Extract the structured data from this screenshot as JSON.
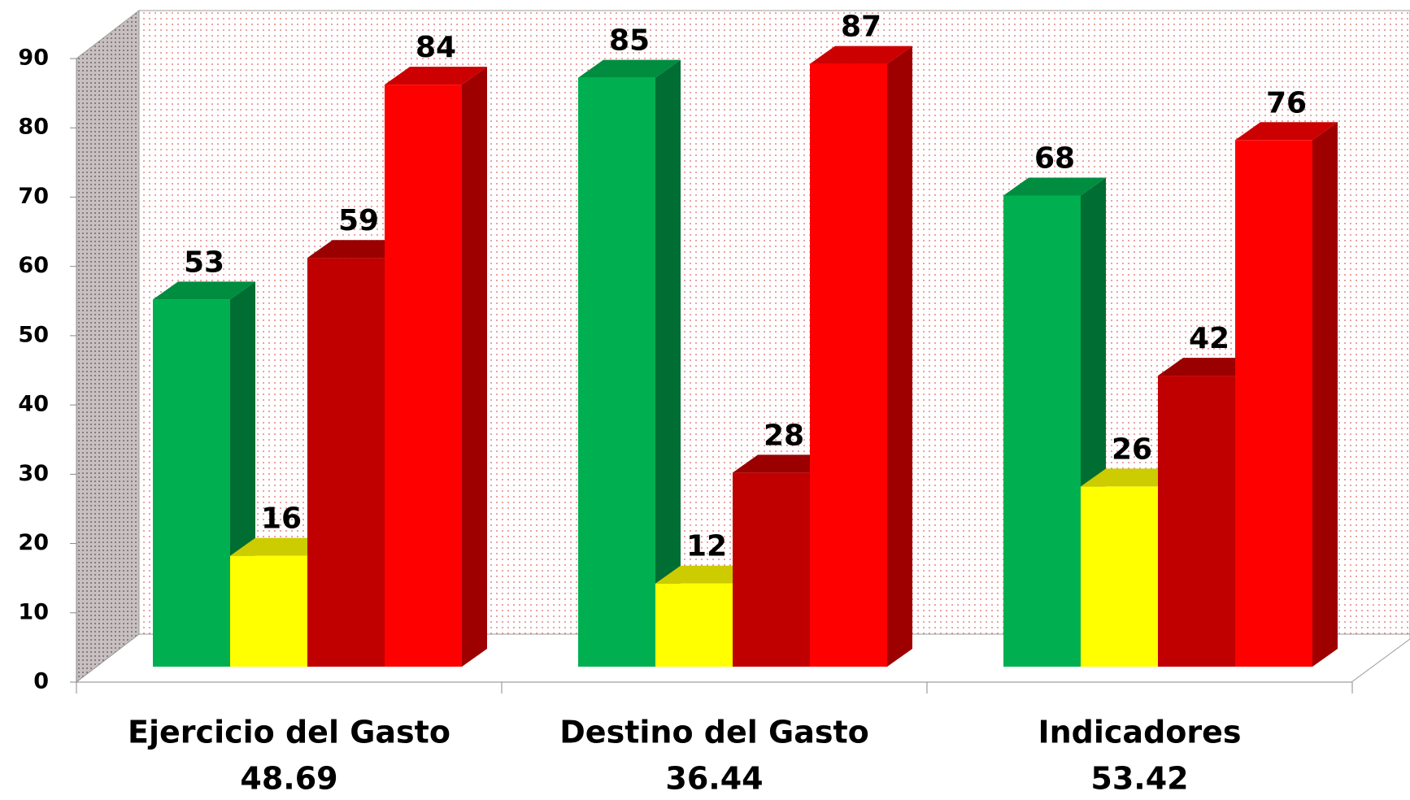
{
  "chart_data": {
    "type": "bar3d",
    "categories": [
      {
        "name": "Ejercicio del Gasto",
        "score": "48.69"
      },
      {
        "name": "Destino del Gasto",
        "score": "36.44"
      },
      {
        "name": "Indicadores",
        "score": "53.42"
      }
    ],
    "series": [
      {
        "color": "#00b050",
        "values": [
          53,
          85,
          68
        ]
      },
      {
        "color": "#ffff00",
        "values": [
          16,
          12,
          26
        ]
      },
      {
        "color": "#c00000",
        "values": [
          59,
          28,
          42
        ]
      },
      {
        "color": "#ff0000",
        "values": [
          84,
          87,
          76
        ]
      }
    ],
    "ylim": [
      0,
      90
    ],
    "yticks": [
      0,
      10,
      20,
      30,
      40,
      50,
      60,
      70,
      80,
      90
    ]
  }
}
